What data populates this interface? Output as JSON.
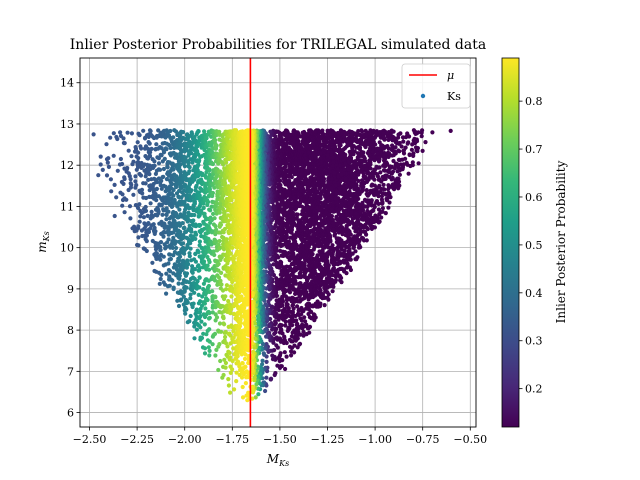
{
  "chart_data": {
    "type": "scatter",
    "title": "Inlier Posterior Probabilities for TRILEGAL simulated data",
    "xlabel": "M_{Ks}",
    "ylabel": "m_{Ks}",
    "xlim": [
      -2.55,
      -0.47
    ],
    "ylim": [
      5.65,
      14.6
    ],
    "x_ticks": [
      -2.5,
      -2.25,
      -2.0,
      -1.75,
      -1.5,
      -1.25,
      -1.0,
      -0.75,
      -0.5
    ],
    "x_tick_labels": [
      "−2.50",
      "−2.25",
      "−2.00",
      "−1.75",
      "−1.50",
      "−1.25",
      "−1.00",
      "−0.75",
      "−0.50"
    ],
    "y_ticks": [
      6,
      7,
      8,
      9,
      10,
      11,
      12,
      13,
      14
    ],
    "y_tick_labels": [
      "6",
      "7",
      "8",
      "9",
      "10",
      "11",
      "12",
      "13",
      "14"
    ],
    "grid": true,
    "mu_line": {
      "name": "μ",
      "x": -1.655,
      "color": "#ff0000"
    },
    "series": [
      {
        "name": "Ks",
        "mu": -1.655,
        "sigma": 0.075,
        "x_range": [
          -2.5,
          -0.58
        ],
        "y_range": [
          6.05,
          12.85
        ],
        "n_points": 9000,
        "value_range": [
          0.12,
          0.89
        ]
      }
    ],
    "legend": {
      "position": "top-right",
      "entries": [
        {
          "label": "μ",
          "marker": "line",
          "color": "#ff0000"
        },
        {
          "label": "Ks",
          "marker": "dot",
          "color": "#1f77b4"
        }
      ]
    },
    "colorbar": {
      "label": "Inlier Posterior Probability",
      "colormap": "viridis",
      "range": [
        0.12,
        0.89
      ],
      "ticks": [
        0.2,
        0.3,
        0.4,
        0.5,
        0.6,
        0.7,
        0.8
      ],
      "tick_labels": [
        "0.2",
        "0.3",
        "0.4",
        "0.5",
        "0.6",
        "0.7",
        "0.8"
      ]
    }
  }
}
